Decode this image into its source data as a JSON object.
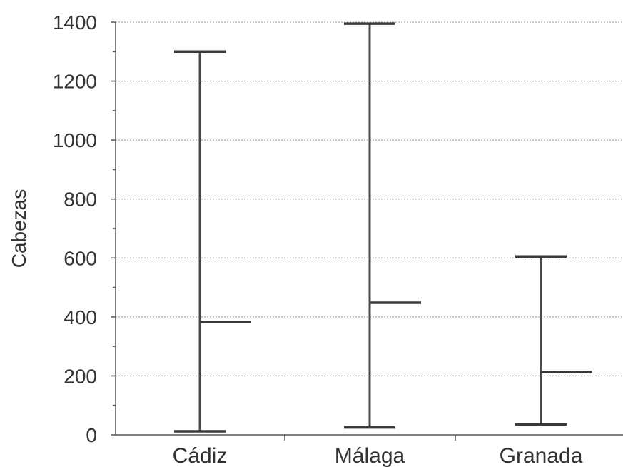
{
  "chart_data": {
    "type": "hi-lo-mean",
    "title": "",
    "xlabel": "",
    "ylabel": "Cabezas",
    "ylim": [
      0,
      1400
    ],
    "yticks": [
      0,
      200,
      400,
      600,
      800,
      1000,
      1200,
      1400
    ],
    "grid": true,
    "categories": [
      "Cádiz",
      "Málaga",
      "Granada"
    ],
    "series": [
      {
        "category": "Cádiz",
        "min": 12,
        "max": 1300,
        "mean": 383
      },
      {
        "category": "Málaga",
        "min": 25,
        "max": 1395,
        "mean": 448
      },
      {
        "category": "Granada",
        "min": 35,
        "max": 605,
        "mean": 213
      }
    ],
    "colors": {
      "lines": "#3a3a3a",
      "grid": "#9a9a9a",
      "text": "#333333"
    }
  }
}
